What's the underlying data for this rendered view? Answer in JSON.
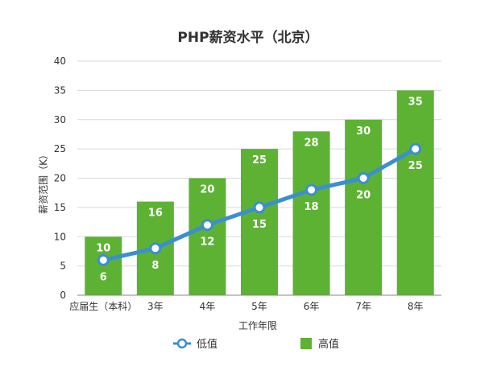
{
  "chart_data": {
    "type": "bar",
    "title": "PHP薪资水平（北京）",
    "xlabel": "工作年限",
    "ylabel": "薪资范围（K）",
    "ylim": [
      0,
      40
    ],
    "yticks": [
      0,
      5,
      10,
      15,
      20,
      25,
      30,
      35,
      40
    ],
    "grid": true,
    "legend_position": "bottom",
    "categories": [
      "应届生（本科）",
      "3年",
      "4年",
      "5年",
      "6年",
      "7年",
      "8年"
    ],
    "series": [
      {
        "name": "高值",
        "type": "bar",
        "color": "#5db234",
        "values": [
          10,
          16,
          20,
          25,
          28,
          30,
          35
        ]
      },
      {
        "name": "低值",
        "type": "line",
        "color": "#3a8fd0",
        "values": [
          6,
          8,
          12,
          15,
          18,
          20,
          25
        ]
      }
    ]
  }
}
